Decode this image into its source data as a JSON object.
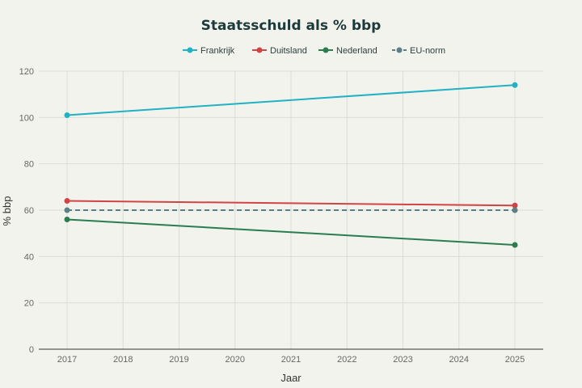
{
  "chart_data": {
    "type": "line",
    "title": "Staatsschuld als % bbp",
    "xlabel": "Jaar",
    "ylabel": "% bbp",
    "x": [
      2017,
      2018,
      2019,
      2020,
      2021,
      2022,
      2023,
      2024,
      2025
    ],
    "ylim": [
      0,
      120
    ],
    "yticks": [
      0,
      20,
      40,
      60,
      80,
      100,
      120
    ],
    "grid": true,
    "legend_position": "top-center",
    "series": [
      {
        "name": "Frankrijk",
        "color": "#20b2c4",
        "dash": false,
        "points": [
          [
            2017,
            101
          ],
          [
            2025,
            114
          ]
        ]
      },
      {
        "name": "Duitsland",
        "color": "#d04444",
        "dash": false,
        "points": [
          [
            2017,
            64
          ],
          [
            2025,
            62
          ]
        ]
      },
      {
        "name": "Nederland",
        "color": "#2a7d4f",
        "dash": false,
        "points": [
          [
            2017,
            56
          ],
          [
            2025,
            45
          ]
        ]
      },
      {
        "name": "EU-norm",
        "color": "#5a7f86",
        "dash": true,
        "points": [
          [
            2017,
            60
          ],
          [
            2025,
            60
          ]
        ]
      }
    ]
  }
}
